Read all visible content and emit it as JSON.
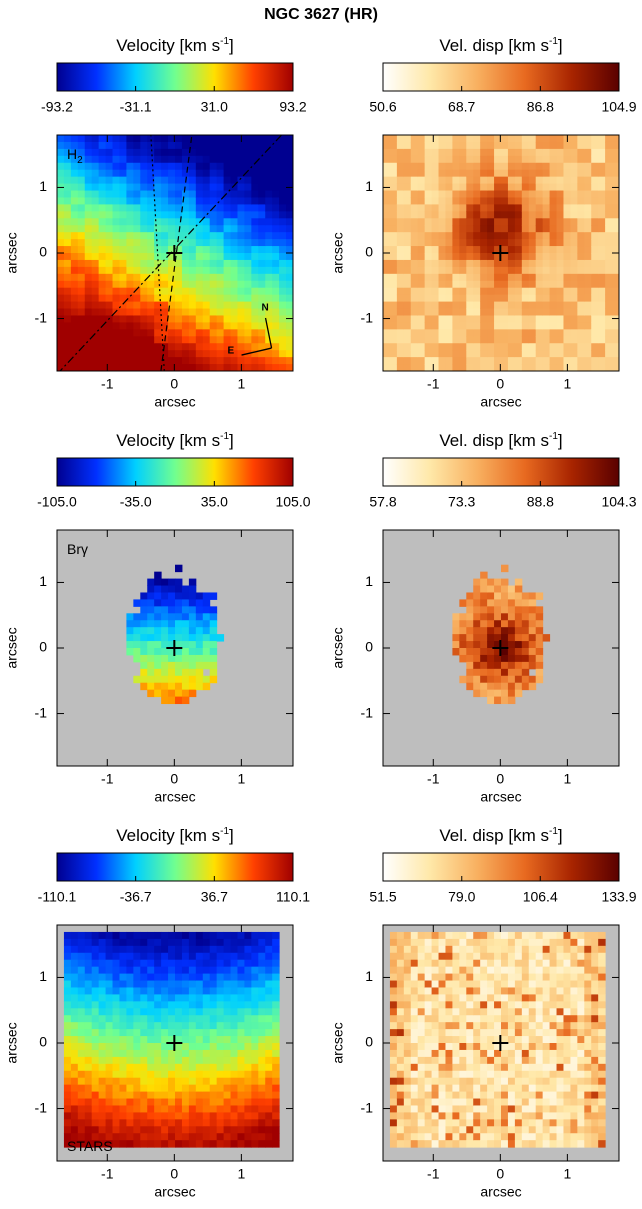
{
  "title": "NGC 3627 (HR)",
  "chart_data": [
    {
      "type": "map",
      "title": [
        "Velocity  [km s",
        "-1",
        "]"
      ],
      "clim": [
        -93.2,
        93.2
      ],
      "cticks": [
        -93.2,
        -31.1,
        {
          "value": 31,
          "label": "31.0"
        },
        93.2
      ],
      "colormap": [
        "#000090",
        "#0030ff",
        "#00d0ff",
        "#70ff90",
        "#ffe000",
        "#ff4000",
        "#a00000"
      ],
      "xlim": [
        -1.75,
        1.77
      ],
      "ylim": [
        -1.8,
        1.8
      ],
      "xticks": [
        -1,
        0,
        1
      ],
      "yticks": [
        -1,
        0,
        1
      ],
      "xlabel": "arcsec",
      "ylabel": "arcsec",
      "annotation": [
        "H",
        "2"
      ],
      "annotation_corner": "upper left",
      "compass": [
        "N",
        "E"
      ]
    },
    {
      "type": "map",
      "title": [
        "Vel. disp  [km s",
        "-1",
        "]"
      ],
      "clim": [
        50.6,
        104.9
      ],
      "cticks": [
        50.6,
        68.7,
        86.8,
        104.9
      ],
      "colormap": [
        "#ffffff",
        "#ffe8a8",
        "#f8b060",
        "#e86a20",
        "#a82400",
        "#5a0000"
      ],
      "xlim": [
        -1.75,
        1.77
      ],
      "ylim": [
        -1.8,
        1.8
      ],
      "xticks": [
        -1,
        0,
        1
      ],
      "yticks": [
        -1,
        0,
        1
      ],
      "xlabel": "arcsec",
      "ylabel": "arcsec"
    },
    {
      "type": "map",
      "title": [
        "Velocity  [km s",
        "-1",
        "]"
      ],
      "clim": [
        -105,
        105
      ],
      "cticks": [
        {
          "value": -105,
          "label": "-105.0"
        },
        {
          "value": -35,
          "label": "-35.0"
        },
        {
          "value": 35,
          "label": "35.0"
        },
        {
          "value": 105,
          "label": "105.0"
        }
      ],
      "colormap": [
        "#000090",
        "#0030ff",
        "#00d0ff",
        "#70ff90",
        "#ffe000",
        "#ff4000",
        "#a00000"
      ],
      "xlim": [
        -1.75,
        1.77
      ],
      "ylim": [
        -1.8,
        1.8
      ],
      "xticks": [
        -1,
        0,
        1
      ],
      "yticks": [
        -1,
        0,
        1
      ],
      "xlabel": "arcsec",
      "ylabel": "arcsec",
      "annotation": [
        "Brγ"
      ],
      "annotation_corner": "upper left",
      "background": "#bebebe"
    },
    {
      "type": "map",
      "title": [
        "Vel. disp  [km s",
        "-1",
        "]"
      ],
      "clim": [
        57.8,
        104.3
      ],
      "cticks": [
        57.8,
        73.3,
        88.8,
        104.3
      ],
      "colormap": [
        "#ffffff",
        "#ffe8a8",
        "#f8b060",
        "#e86a20",
        "#a82400",
        "#5a0000"
      ],
      "xlim": [
        -1.75,
        1.77
      ],
      "ylim": [
        -1.8,
        1.8
      ],
      "xticks": [
        -1,
        0,
        1
      ],
      "yticks": [
        -1,
        0,
        1
      ],
      "xlabel": "arcsec",
      "ylabel": "arcsec",
      "background": "#bebebe"
    },
    {
      "type": "map",
      "title": [
        "Velocity  [km s",
        "-1",
        "]"
      ],
      "clim": [
        -110.1,
        110.1
      ],
      "cticks": [
        -110.1,
        -36.7,
        36.7,
        110.1
      ],
      "colormap": [
        "#000090",
        "#0030ff",
        "#00d0ff",
        "#70ff90",
        "#ffe000",
        "#ff4000",
        "#a00000"
      ],
      "xlim": [
        -1.75,
        1.77
      ],
      "ylim": [
        -1.8,
        1.8
      ],
      "xticks": [
        -1,
        0,
        1
      ],
      "yticks": [
        -1,
        0,
        1
      ],
      "xlabel": "arcsec",
      "ylabel": "arcsec",
      "annotation": [
        "STARS"
      ],
      "annotation_corner": "lower left",
      "background": "#bebebe"
    },
    {
      "type": "map",
      "title": [
        "Vel. disp  [km s",
        "-1",
        "]"
      ],
      "clim": [
        51.5,
        133.9
      ],
      "cticks": [
        51.5,
        {
          "value": 79,
          "label": "79.0"
        },
        106.4,
        133.9
      ],
      "colormap": [
        "#ffffff",
        "#ffe8a8",
        "#f8b060",
        "#e86a20",
        "#a82400",
        "#5a0000"
      ],
      "xlim": [
        -1.75,
        1.77
      ],
      "ylim": [
        -1.8,
        1.8
      ],
      "xticks": [
        -1,
        0,
        1
      ],
      "yticks": [
        -1,
        0,
        1
      ],
      "xlabel": "arcsec",
      "ylabel": "arcsec",
      "background": "#bebebe"
    }
  ]
}
